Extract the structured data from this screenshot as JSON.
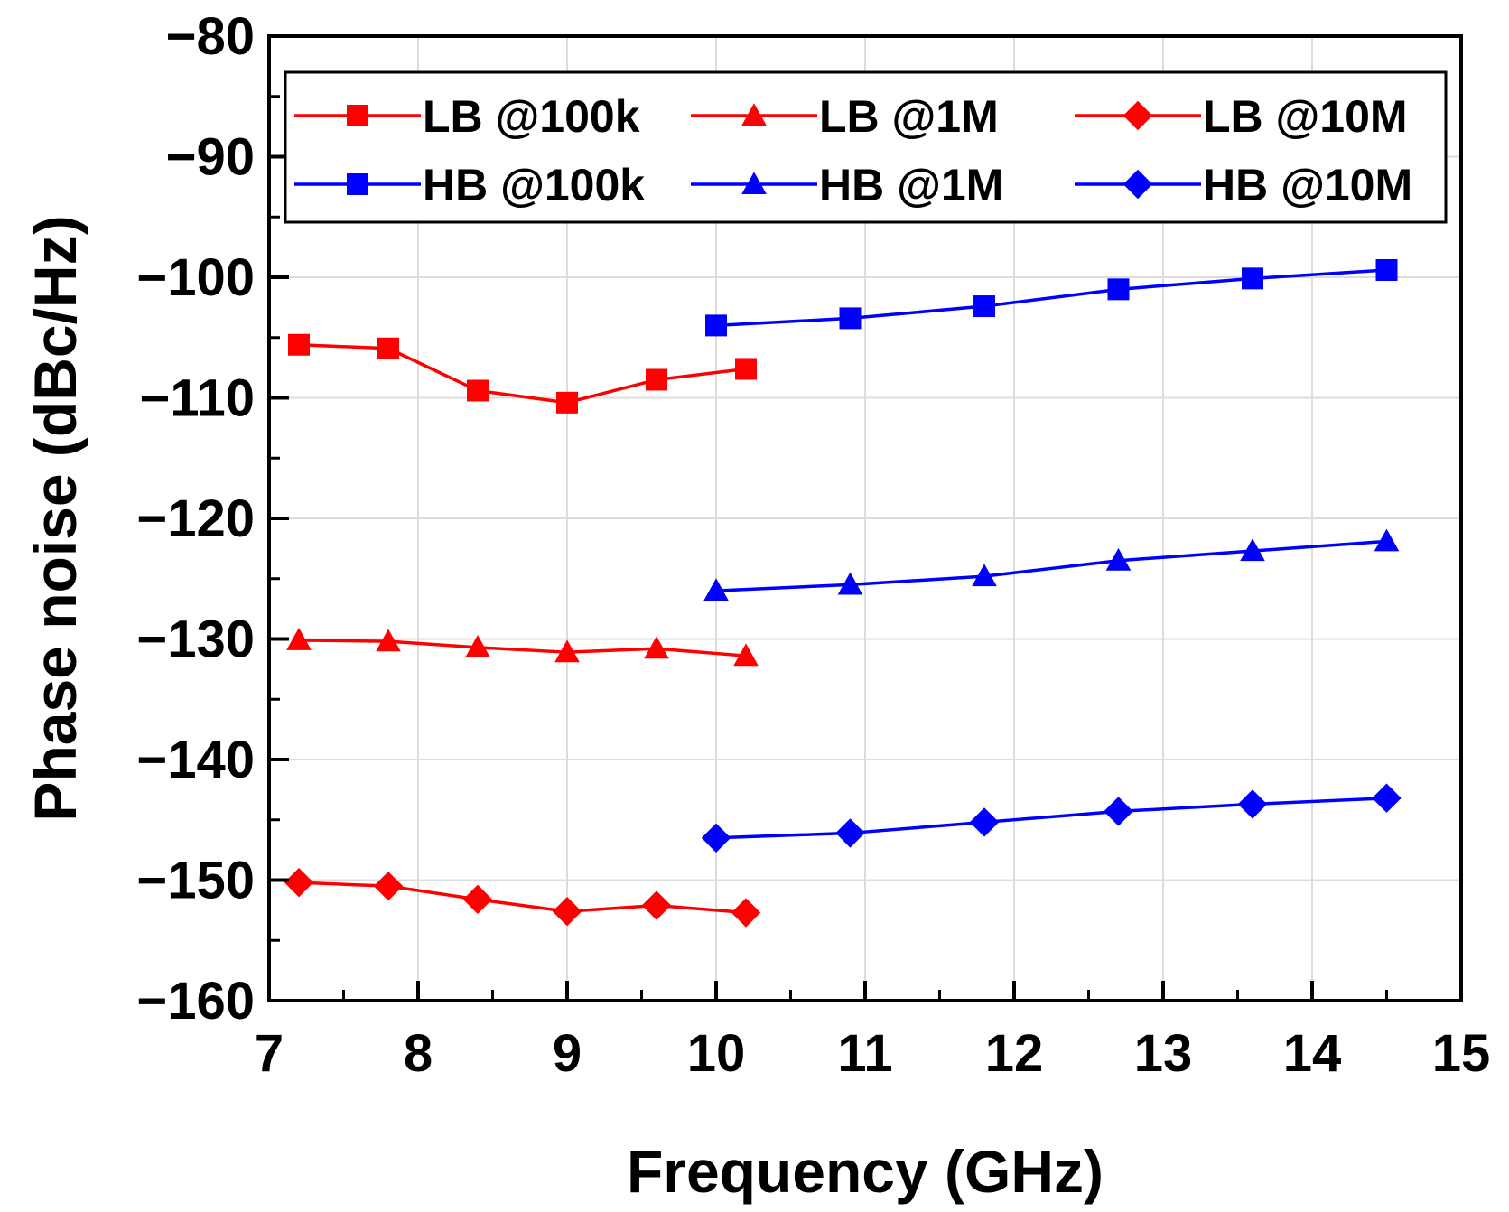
{
  "chart_data": {
    "type": "line",
    "title": "",
    "xlabel": "Frequency (GHz)",
    "ylabel": "Phase noise (dBc/Hz)",
    "xlim": [
      7,
      15
    ],
    "ylim": [
      -160,
      -80
    ],
    "xticks": [
      "7",
      "8",
      "9",
      "10",
      "11",
      "12",
      "13",
      "14",
      "15"
    ],
    "yticks": [
      "−80",
      "−90",
      "−100",
      "−110",
      "−120",
      "−130",
      "−140",
      "−150",
      "−160"
    ],
    "grid": true,
    "legend_position": "top",
    "series": [
      {
        "name": "LB @100k",
        "color": "#ff0000",
        "marker": "square",
        "x": [
          7.2,
          7.8,
          8.4,
          9.0,
          9.6,
          10.2
        ],
        "y": [
          -105.6,
          -105.9,
          -109.4,
          -110.4,
          -108.5,
          -107.6
        ]
      },
      {
        "name": "LB @1M",
        "color": "#ff0000",
        "marker": "triangle",
        "x": [
          7.2,
          7.8,
          8.4,
          9.0,
          9.6,
          10.2
        ],
        "y": [
          -130.1,
          -130.2,
          -130.7,
          -131.1,
          -130.8,
          -131.4
        ]
      },
      {
        "name": "LB @10M",
        "color": "#ff0000",
        "marker": "diamond",
        "x": [
          7.2,
          7.8,
          8.4,
          9.0,
          9.6,
          10.2
        ],
        "y": [
          -150.2,
          -150.5,
          -151.6,
          -152.6,
          -152.1,
          -152.7
        ]
      },
      {
        "name": "HB @100k",
        "color": "#0000ff",
        "marker": "square",
        "x": [
          10.0,
          10.9,
          11.8,
          12.7,
          13.6,
          14.5
        ],
        "y": [
          -104.0,
          -103.4,
          -102.4,
          -101.0,
          -100.1,
          -99.4
        ]
      },
      {
        "name": "HB @1M",
        "color": "#0000ff",
        "marker": "triangle",
        "x": [
          10.0,
          10.9,
          11.8,
          12.7,
          13.6,
          14.5
        ],
        "y": [
          -126.0,
          -125.5,
          -124.8,
          -123.5,
          -122.7,
          -121.9
        ]
      },
      {
        "name": "HB @10M",
        "color": "#0000ff",
        "marker": "diamond",
        "x": [
          10.0,
          10.9,
          11.8,
          12.7,
          13.6,
          14.5
        ],
        "y": [
          -146.5,
          -146.1,
          -145.2,
          -144.3,
          -143.7,
          -143.2
        ]
      }
    ]
  }
}
